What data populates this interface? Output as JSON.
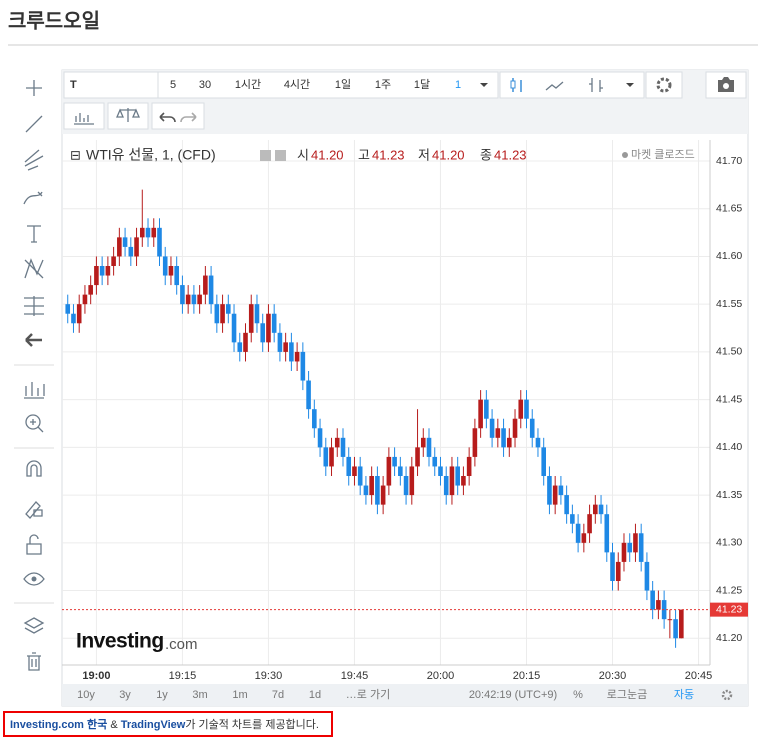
{
  "title": "크루드오일",
  "toolbar": {
    "symbol": "T",
    "intervals": [
      "5",
      "30",
      "1시간",
      "4시간",
      "1일",
      "1주",
      "1달",
      "1"
    ]
  },
  "ohlc_header": {
    "symbol": "WTI유 선물, 1, (CFD)",
    "open_label": "시",
    "open": "41.20",
    "high_label": "고",
    "high": "41.23",
    "low_label": "저",
    "low": "41.20",
    "close_label": "종",
    "close": "41.23",
    "status": "마켓 클로즈드"
  },
  "watermark": {
    "brand": "Investing",
    "suffix": ".com"
  },
  "bottom_bar": {
    "ranges": [
      "10y",
      "3y",
      "1y",
      "3m",
      "1m",
      "7d",
      "1d"
    ],
    "goto": "…로 가기",
    "clock": "20:42:19 (UTC+9)",
    "percent": "%",
    "log": "로그눈금",
    "auto": "자동"
  },
  "footer": {
    "site": "Investing.com 한국",
    "amp": " & ",
    "provider": "TradingView",
    "text": "가 기술적 차트를 제공합니다."
  },
  "chart_data": {
    "type": "candlestick",
    "up_color": "#b71c1c",
    "down_color": "#1e88e5",
    "grid": true,
    "x": [
      "18:55",
      "18:56",
      "18:57",
      "18:58",
      "18:59",
      "19:00",
      "19:01",
      "19:02",
      "19:03",
      "19:04",
      "19:05",
      "19:06",
      "19:07",
      "19:08",
      "19:09",
      "19:10",
      "19:11",
      "19:12",
      "19:13",
      "19:14",
      "19:15",
      "19:16",
      "19:17",
      "19:18",
      "19:19",
      "19:20",
      "19:21",
      "19:22",
      "19:23",
      "19:24",
      "19:25",
      "19:26",
      "19:27",
      "19:28",
      "19:29",
      "19:30",
      "19:31",
      "19:32",
      "19:33",
      "19:34",
      "19:35",
      "19:36",
      "19:37",
      "19:38",
      "19:39",
      "19:40",
      "19:41",
      "19:42",
      "19:43",
      "19:44",
      "19:45",
      "19:46",
      "19:47",
      "19:48",
      "19:49",
      "19:50",
      "19:51",
      "19:52",
      "19:53",
      "19:54",
      "19:55",
      "19:56",
      "19:57",
      "19:58",
      "19:59",
      "20:00",
      "20:01",
      "20:02",
      "20:03",
      "20:04",
      "20:05",
      "20:06",
      "20:07",
      "20:08",
      "20:09",
      "20:10",
      "20:11",
      "20:12",
      "20:13",
      "20:14",
      "20:15",
      "20:16",
      "20:17",
      "20:18",
      "20:19",
      "20:20",
      "20:21",
      "20:22",
      "20:23",
      "20:24",
      "20:25",
      "20:26",
      "20:27",
      "20:28",
      "20:29",
      "20:30",
      "20:31",
      "20:32",
      "20:33",
      "20:34",
      "20:35",
      "20:36",
      "20:37",
      "20:38",
      "20:39",
      "20:40",
      "20:41",
      "20:42"
    ],
    "open": [
      41.55,
      41.54,
      41.53,
      41.55,
      41.56,
      41.57,
      41.59,
      41.58,
      41.59,
      41.6,
      41.62,
      41.61,
      41.6,
      41.62,
      41.63,
      41.62,
      41.63,
      41.6,
      41.58,
      41.59,
      41.57,
      41.55,
      41.56,
      41.55,
      41.56,
      41.58,
      41.55,
      41.53,
      41.55,
      41.54,
      41.51,
      41.5,
      41.52,
      41.55,
      41.53,
      41.51,
      41.54,
      41.52,
      41.5,
      41.51,
      41.49,
      41.5,
      41.47,
      41.44,
      41.42,
      41.4,
      41.38,
      41.4,
      41.41,
      41.39,
      41.37,
      41.38,
      41.36,
      41.35,
      41.37,
      41.34,
      41.36,
      41.39,
      41.38,
      41.37,
      41.35,
      41.38,
      41.4,
      41.41,
      41.39,
      41.38,
      41.37,
      41.35,
      41.38,
      41.36,
      41.37,
      41.39,
      41.42,
      41.45,
      41.43,
      41.41,
      41.42,
      41.4,
      41.41,
      41.43,
      41.45,
      41.43,
      41.41,
      41.4,
      41.37,
      41.34,
      41.36,
      41.35,
      41.33,
      41.32,
      41.3,
      41.31,
      41.33,
      41.34,
      41.33,
      41.29,
      41.26,
      41.28,
      41.3,
      41.29,
      41.31,
      41.28,
      41.25,
      41.23,
      41.24,
      41.22,
      41.22,
      41.2
    ],
    "high": [
      41.56,
      41.55,
      41.56,
      41.57,
      41.58,
      41.6,
      41.6,
      41.6,
      41.61,
      41.63,
      41.63,
      41.62,
      41.63,
      41.67,
      41.64,
      41.64,
      41.64,
      41.61,
      41.6,
      41.6,
      41.58,
      41.57,
      41.57,
      41.57,
      41.59,
      41.59,
      41.56,
      41.56,
      41.56,
      41.55,
      41.52,
      41.53,
      41.56,
      41.56,
      41.54,
      41.55,
      41.55,
      41.53,
      41.52,
      41.52,
      41.51,
      41.51,
      41.48,
      41.45,
      41.43,
      41.41,
      41.41,
      41.42,
      41.42,
      41.4,
      41.39,
      41.39,
      41.37,
      41.38,
      41.38,
      41.37,
      41.4,
      41.4,
      41.39,
      41.38,
      41.39,
      41.44,
      41.42,
      41.42,
      41.4,
      41.39,
      41.38,
      41.39,
      41.39,
      41.38,
      41.4,
      41.43,
      41.46,
      41.46,
      41.44,
      41.43,
      41.43,
      41.42,
      41.44,
      41.46,
      41.46,
      41.44,
      41.42,
      41.41,
      41.38,
      41.37,
      41.37,
      41.36,
      41.34,
      41.33,
      41.32,
      41.34,
      41.35,
      41.35,
      41.34,
      41.3,
      41.29,
      41.31,
      41.31,
      41.32,
      41.32,
      41.29,
      41.26,
      41.25,
      41.25,
      41.23,
      41.23,
      41.23
    ],
    "low": [
      41.53,
      41.52,
      41.52,
      41.54,
      41.55,
      41.56,
      41.57,
      41.57,
      41.58,
      41.59,
      41.6,
      41.59,
      41.59,
      41.61,
      41.61,
      41.61,
      41.59,
      41.57,
      41.57,
      41.56,
      41.54,
      41.54,
      41.54,
      41.54,
      41.55,
      41.54,
      41.52,
      41.52,
      41.53,
      41.5,
      41.49,
      41.49,
      41.51,
      41.52,
      41.5,
      41.5,
      41.51,
      41.49,
      41.49,
      41.48,
      41.48,
      41.46,
      41.43,
      41.41,
      41.39,
      41.37,
      41.37,
      41.39,
      41.38,
      41.36,
      41.36,
      41.35,
      41.34,
      41.34,
      41.33,
      41.33,
      41.35,
      41.37,
      41.36,
      41.34,
      41.34,
      41.37,
      41.39,
      41.38,
      41.37,
      41.36,
      41.34,
      41.34,
      41.35,
      41.35,
      41.36,
      41.38,
      41.41,
      41.42,
      41.4,
      41.4,
      41.39,
      41.39,
      41.4,
      41.42,
      41.42,
      41.4,
      41.39,
      41.36,
      41.33,
      41.33,
      41.34,
      41.32,
      41.31,
      41.29,
      41.29,
      41.3,
      41.32,
      41.32,
      41.28,
      41.25,
      41.25,
      41.27,
      41.28,
      41.28,
      41.27,
      41.24,
      41.22,
      41.22,
      41.21,
      41.2,
      41.19,
      41.2
    ],
    "close": [
      41.54,
      41.53,
      41.55,
      41.56,
      41.57,
      41.59,
      41.58,
      41.59,
      41.6,
      41.62,
      41.61,
      41.6,
      41.62,
      41.63,
      41.62,
      41.63,
      41.6,
      41.58,
      41.59,
      41.57,
      41.55,
      41.56,
      41.55,
      41.56,
      41.58,
      41.55,
      41.53,
      41.55,
      41.54,
      41.51,
      41.5,
      41.52,
      41.55,
      41.53,
      41.51,
      41.54,
      41.52,
      41.5,
      41.51,
      41.49,
      41.5,
      41.47,
      41.44,
      41.42,
      41.4,
      41.38,
      41.4,
      41.41,
      41.39,
      41.37,
      41.38,
      41.36,
      41.35,
      41.37,
      41.34,
      41.36,
      41.39,
      41.38,
      41.37,
      41.35,
      41.38,
      41.4,
      41.41,
      41.39,
      41.38,
      41.37,
      41.35,
      41.38,
      41.36,
      41.37,
      41.39,
      41.42,
      41.45,
      41.43,
      41.41,
      41.42,
      41.4,
      41.41,
      41.43,
      41.45,
      41.43,
      41.41,
      41.4,
      41.37,
      41.34,
      41.36,
      41.35,
      41.33,
      41.32,
      41.3,
      41.31,
      41.33,
      41.34,
      41.33,
      41.29,
      41.26,
      41.28,
      41.3,
      41.29,
      41.31,
      41.28,
      41.25,
      41.23,
      41.24,
      41.22,
      41.22,
      41.2,
      41.23
    ],
    "last_price": 41.23,
    "last_color": "#e53935",
    "xlim": [
      "18:54",
      "20:47"
    ],
    "xticks": [
      "19:00",
      "19:15",
      "19:30",
      "19:45",
      "20:00",
      "20:15",
      "20:30",
      "20:45"
    ],
    "ylim": [
      41.172,
      41.722
    ],
    "yticks": [
      {
        "value": 41.2,
        "label": "41.20"
      },
      41.25,
      {
        "value": 41.3,
        "label": "41.30"
      },
      41.35,
      {
        "value": 41.4,
        "label": "41.40"
      },
      41.45,
      {
        "value": 41.5,
        "label": "41.50"
      },
      41.55,
      {
        "value": 41.6,
        "label": "41.60"
      },
      41.65,
      {
        "value": 41.7,
        "label": "41.70"
      }
    ]
  }
}
